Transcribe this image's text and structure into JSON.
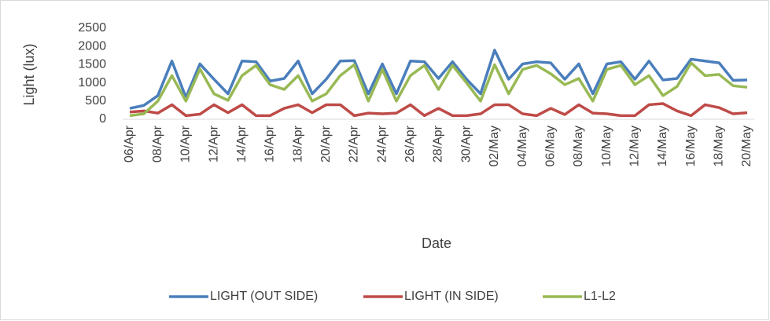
{
  "chart_data": {
    "type": "line",
    "x_label": "Date",
    "y_label": "Light (lux)",
    "categories": [
      "06/Apr",
      null,
      "08/Apr",
      null,
      "10/Apr",
      null,
      "12/Apr",
      null,
      "14/Apr",
      null,
      "16/Apr",
      null,
      "18/Apr",
      null,
      "20/Apr",
      null,
      "22/Apr",
      null,
      "24/Apr",
      null,
      "26/Apr",
      null,
      "28/Apr",
      null,
      "30/Apr",
      null,
      "02/May",
      null,
      "04/May",
      null,
      "06/May",
      null,
      "08/May",
      null,
      "10/May",
      null,
      "12/May",
      null,
      "14/May",
      null,
      "16/May",
      null,
      "18/May",
      null,
      "20/May"
    ],
    "series": [
      {
        "name": "LIGHT (OUT SIDE)",
        "color": "#4a7ebb",
        "values": [
          300,
          380,
          650,
          1600,
          600,
          1520,
          1100,
          700,
          1600,
          1580,
          1050,
          1120,
          1600,
          700,
          1100,
          1600,
          1610,
          700,
          1520,
          700,
          1600,
          1580,
          1120,
          1580,
          1100,
          700,
          1900,
          1100,
          1520,
          1580,
          1550,
          1100,
          1520,
          700,
          1520,
          1580,
          1100,
          1600,
          1080,
          1120,
          1650,
          1600,
          1550,
          1070,
          1080
        ]
      },
      {
        "name": "LIGHT (IN SIDE)",
        "color": "#be4b48",
        "values": [
          200,
          230,
          170,
          400,
          100,
          140,
          400,
          180,
          400,
          100,
          100,
          300,
          400,
          180,
          400,
          400,
          100,
          170,
          150,
          170,
          400,
          100,
          300,
          100,
          100,
          150,
          400,
          400,
          150,
          100,
          300,
          130,
          400,
          170,
          150,
          100,
          100,
          400,
          430,
          230,
          100,
          400,
          320,
          150,
          180
        ]
      },
      {
        "name": "L1-L2",
        "color": "#98b954",
        "values": [
          100,
          150,
          500,
          1200,
          500,
          1380,
          700,
          520,
          1200,
          1480,
          950,
          820,
          1200,
          500,
          700,
          1200,
          1500,
          500,
          1370,
          500,
          1200,
          1480,
          820,
          1480,
          1000,
          500,
          1500,
          700,
          1370,
          1480,
          1250,
          950,
          1120,
          500,
          1370,
          1480,
          950,
          1200,
          650,
          900,
          1550,
          1200,
          1230,
          920,
          880
        ]
      }
    ],
    "ylim": [
      0,
      2500
    ],
    "yticks": [
      0,
      500,
      1000,
      1500,
      2000,
      2500
    ],
    "grid": false,
    "legend": "bottom"
  }
}
